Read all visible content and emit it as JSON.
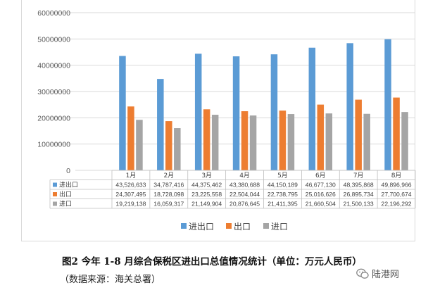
{
  "chart_data": {
    "type": "bar",
    "categories": [
      "1月",
      "2月",
      "3月",
      "4月",
      "5月",
      "6月",
      "7月",
      "8月"
    ],
    "series": [
      {
        "name": "进出口",
        "color": "#5b9bd5",
        "values": [
          43526633,
          34787416,
          44375462,
          43380688,
          44150189,
          46677130,
          48395868,
          49896966
        ],
        "labels": [
          "43,526,633",
          "34,787,416",
          "44,375,462",
          "43,380,688",
          "44,150,189",
          "46,677,130",
          "48,395,868",
          "49,896,966"
        ]
      },
      {
        "name": "出口",
        "color": "#ed7d31",
        "values": [
          24307495,
          18728098,
          23225558,
          22504044,
          22738795,
          25016626,
          26895734,
          27700674
        ],
        "labels": [
          "24,307,495",
          "18,728,098",
          "23,225,558",
          "22,504,044",
          "22,738,795",
          "25,016,626",
          "26,895,734",
          "27,700,674"
        ]
      },
      {
        "name": "进口",
        "color": "#a5a5a5",
        "values": [
          19219138,
          16059317,
          21149904,
          20876645,
          21411395,
          21660504,
          21500133,
          22196292
        ],
        "labels": [
          "19,219,138",
          "16,059,317",
          "21,149,904",
          "20,876,645",
          "21,411,395",
          "21,660,504",
          "21,500,133",
          "22,196,292"
        ]
      }
    ],
    "ylim": [
      0,
      60000000
    ],
    "yticks": [
      "60000000",
      "50000000",
      "40000000",
      "30000000",
      "20000000",
      "10000000",
      "0"
    ],
    "legend": "bottom",
    "data_table": true,
    "grid": true
  },
  "caption": {
    "title": "图2  今年 1-8 月综合保税区进出口总值情况统计（单位：万元人民币）",
    "source": "（数据来源：海关总署）"
  },
  "watermark": {
    "text": "陆港网",
    "icon": "wechat-icon"
  }
}
